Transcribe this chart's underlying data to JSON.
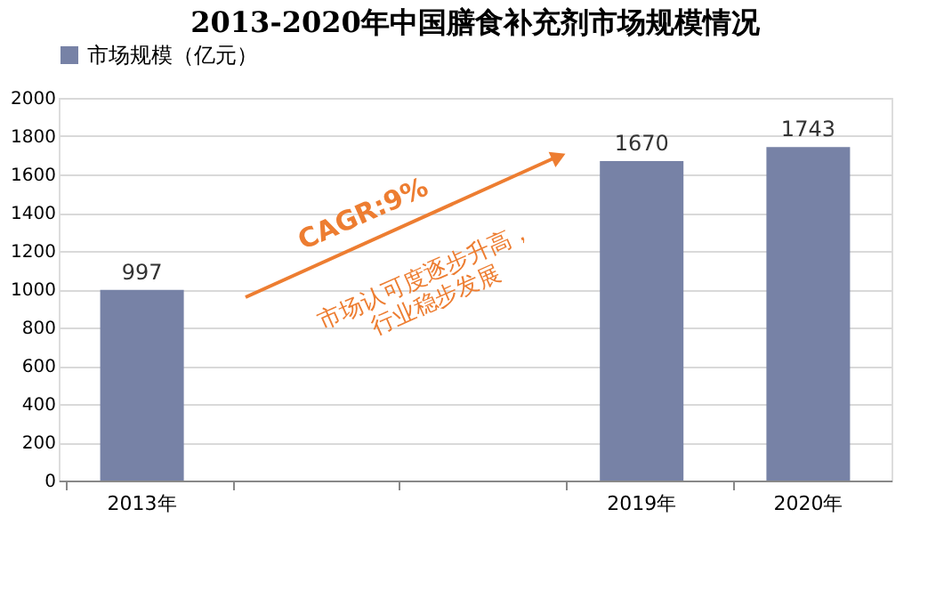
{
  "chart_data": {
    "type": "bar",
    "title": "2013-2020年中国膳食补充剂市场规模情况",
    "categories": [
      "2013年",
      null,
      null,
      "2019年",
      "2020年"
    ],
    "series": [
      {
        "name": "市场规模（亿元）",
        "color": "#7782a6",
        "values": [
          997,
          null,
          null,
          1670,
          1743
        ]
      }
    ],
    "ylim": [
      0,
      2000
    ],
    "yticks": [
      0,
      200,
      400,
      600,
      800,
      1000,
      1200,
      1400,
      1600,
      1800,
      2000
    ],
    "grid": "y",
    "legend": "top",
    "data_labels": true,
    "annotations": [
      "CAGR:9%",
      "市场认可度逐步升高，\n行业稳步发展"
    ]
  }
}
